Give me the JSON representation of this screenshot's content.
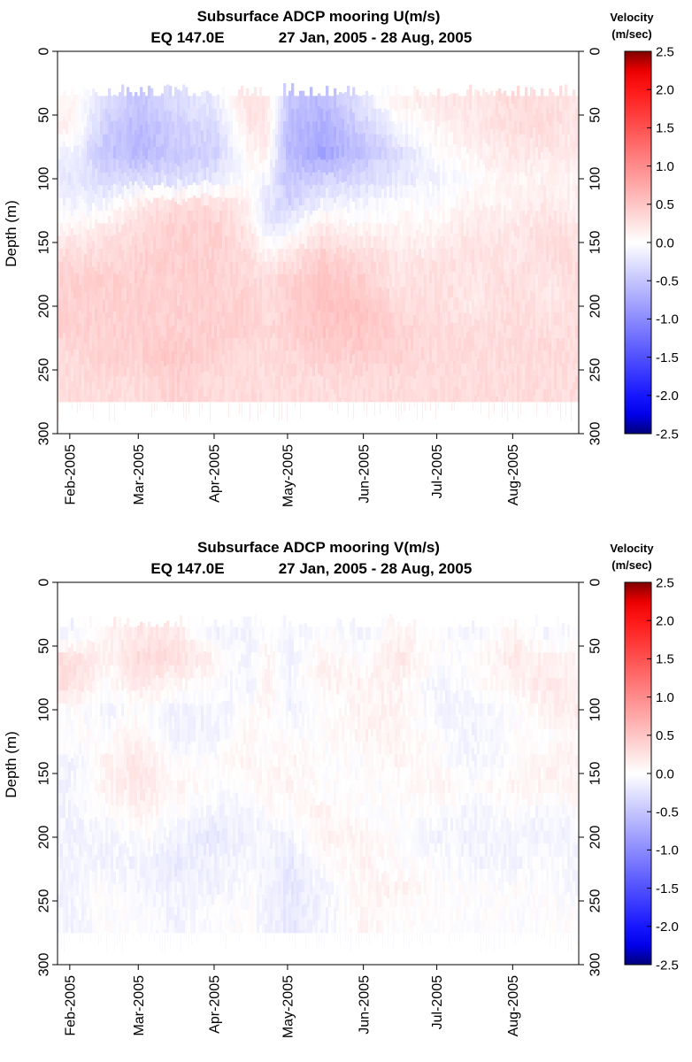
{
  "chart_data": [
    {
      "type": "heatmap",
      "title": "Subsurface ADCP mooring U(m/s)",
      "subtitle_location": "EQ 147.0E",
      "subtitle_dates": "27 Jan, 2005 - 28 Aug, 2005",
      "variable": "U",
      "ylabel": "Depth (m)",
      "ylim": [
        300,
        0
      ],
      "yticks": [
        "0",
        "50",
        "100",
        "150",
        "200",
        "250",
        "300"
      ],
      "xlim": [
        "2005-01-27",
        "2005-08-28"
      ],
      "xticks": [
        "Feb-2005",
        "Mar-2005",
        "Apr-2005",
        "May-2005",
        "Jun-2005",
        "Jul-2005",
        "Aug-2005"
      ],
      "colorbar": {
        "title_line1": "Velocity",
        "title_line2": "(m/sec)",
        "range": [
          -2.5,
          2.5
        ],
        "ticks": [
          "2.5",
          "2.0",
          "1.5",
          "1.0",
          "0.5",
          "0.0",
          "-0.5",
          "-1.0",
          "-1.5",
          "-2.0",
          "-2.5"
        ],
        "color_low": "#00007a",
        "color_mid": "#ffffff",
        "color_high": "#800000"
      },
      "data_depth_range": [
        35,
        275
      ],
      "depths": [
        40,
        60,
        80,
        100,
        120,
        140,
        160,
        180,
        200,
        220,
        240,
        260
      ],
      "dates": [
        "2005-02-01",
        "2005-02-15",
        "2005-03-01",
        "2005-03-15",
        "2005-04-01",
        "2005-04-15",
        "2005-04-22",
        "2005-05-01",
        "2005-05-15",
        "2005-06-01",
        "2005-06-15",
        "2005-07-01",
        "2005-07-15",
        "2005-08-01",
        "2005-08-15",
        "2005-08-28"
      ],
      "values": [
        [
          0.1,
          -0.3,
          -0.5,
          -0.3,
          -0.2,
          0.3,
          0.2,
          -0.5,
          -0.6,
          -0.2,
          0.1,
          0.2,
          0.2,
          0.3,
          0.3,
          0.2
        ],
        [
          0.1,
          -0.4,
          -0.6,
          -0.4,
          -0.3,
          0.2,
          0.2,
          -0.6,
          -0.7,
          -0.4,
          -0.1,
          0.1,
          0.2,
          0.3,
          0.3,
          0.2
        ],
        [
          -0.1,
          -0.5,
          -0.6,
          -0.5,
          -0.4,
          0.1,
          0.1,
          -0.6,
          -0.8,
          -0.5,
          -0.3,
          0.0,
          0.1,
          0.2,
          0.2,
          0.2
        ],
        [
          -0.2,
          -0.3,
          -0.3,
          -0.3,
          -0.2,
          0.0,
          -0.1,
          -0.5,
          -0.4,
          -0.3,
          -0.2,
          -0.1,
          0.0,
          0.1,
          0.1,
          0.1
        ],
        [
          -0.1,
          -0.1,
          0.2,
          0.3,
          0.3,
          0.1,
          -0.2,
          -0.4,
          -0.1,
          -0.1,
          0.0,
          0.0,
          0.1,
          0.1,
          0.2,
          0.1
        ],
        [
          0.1,
          0.2,
          0.3,
          0.4,
          0.4,
          0.2,
          -0.2,
          -0.1,
          0.2,
          0.1,
          0.1,
          0.1,
          0.2,
          0.2,
          0.3,
          0.2
        ],
        [
          0.3,
          0.3,
          0.4,
          0.4,
          0.4,
          0.3,
          0.1,
          0.2,
          0.4,
          0.3,
          0.2,
          0.2,
          0.3,
          0.2,
          0.3,
          0.3
        ],
        [
          0.4,
          0.4,
          0.4,
          0.4,
          0.4,
          0.3,
          0.3,
          0.4,
          0.5,
          0.4,
          0.2,
          0.3,
          0.2,
          0.3,
          0.2,
          0.3
        ],
        [
          0.4,
          0.4,
          0.4,
          0.4,
          0.4,
          0.4,
          0.3,
          0.4,
          0.5,
          0.5,
          0.3,
          0.3,
          0.2,
          0.3,
          0.2,
          0.3
        ],
        [
          0.4,
          0.4,
          0.4,
          0.4,
          0.4,
          0.4,
          0.3,
          0.4,
          0.5,
          0.5,
          0.4,
          0.3,
          0.3,
          0.3,
          0.3,
          0.3
        ],
        [
          0.3,
          0.4,
          0.4,
          0.5,
          0.4,
          0.3,
          0.3,
          0.3,
          0.4,
          0.4,
          0.4,
          0.3,
          0.3,
          0.3,
          0.3,
          0.3
        ],
        [
          0.3,
          0.3,
          0.3,
          0.4,
          0.3,
          0.3,
          0.3,
          0.3,
          0.3,
          0.3,
          0.3,
          0.3,
          0.3,
          0.3,
          0.3,
          0.3
        ]
      ]
    },
    {
      "type": "heatmap",
      "title": "Subsurface ADCP mooring V(m/s)",
      "subtitle_location": "EQ 147.0E",
      "subtitle_dates": "27 Jan, 2005 - 28 Aug, 2005",
      "variable": "V",
      "ylabel": "Depth (m)",
      "ylim": [
        300,
        0
      ],
      "yticks": [
        "0",
        "50",
        "100",
        "150",
        "200",
        "250",
        "300"
      ],
      "xlim": [
        "2005-01-27",
        "2005-08-28"
      ],
      "xticks": [
        "Feb-2005",
        "Mar-2005",
        "Apr-2005",
        "May-2005",
        "Jun-2005",
        "Jul-2005",
        "Aug-2005"
      ],
      "colorbar": {
        "title_line1": "Velocity",
        "title_line2": "(m/sec)",
        "range": [
          -2.5,
          2.5
        ],
        "ticks": [
          "2.5",
          "2.0",
          "1.5",
          "1.0",
          "0.5",
          "0.0",
          "-0.5",
          "-1.0",
          "-1.5",
          "-2.0",
          "-2.5"
        ],
        "color_low": "#00007a",
        "color_mid": "#ffffff",
        "color_high": "#800000"
      },
      "data_depth_range": [
        35,
        275
      ],
      "depths": [
        40,
        60,
        80,
        100,
        120,
        140,
        160,
        180,
        200,
        220,
        240,
        260
      ],
      "dates": [
        "2005-02-01",
        "2005-02-15",
        "2005-03-01",
        "2005-03-15",
        "2005-04-01",
        "2005-04-15",
        "2005-04-22",
        "2005-05-01",
        "2005-05-15",
        "2005-06-01",
        "2005-06-15",
        "2005-07-01",
        "2005-07-15",
        "2005-08-01",
        "2005-08-15",
        "2005-08-28"
      ],
      "values": [
        [
          -0.1,
          0.1,
          0.2,
          0.2,
          -0.1,
          -0.1,
          0.0,
          -0.1,
          0.0,
          -0.1,
          0.1,
          0.0,
          -0.1,
          0.1,
          -0.1,
          0.0
        ],
        [
          0.3,
          0.1,
          0.3,
          0.3,
          0.1,
          -0.1,
          0.1,
          -0.1,
          0.1,
          0.0,
          0.2,
          0.0,
          0.0,
          0.2,
          0.1,
          0.1
        ],
        [
          0.3,
          0.0,
          0.2,
          0.1,
          0.0,
          -0.1,
          0.1,
          -0.1,
          0.1,
          0.1,
          0.1,
          -0.1,
          0.0,
          0.1,
          0.2,
          0.1
        ],
        [
          0.0,
          -0.1,
          0.0,
          -0.1,
          -0.1,
          0.0,
          0.1,
          -0.1,
          0.0,
          0.1,
          0.1,
          -0.1,
          -0.1,
          0.0,
          0.1,
          0.2
        ],
        [
          0.0,
          0.0,
          0.1,
          -0.1,
          -0.1,
          0.1,
          0.0,
          0.0,
          0.0,
          0.1,
          0.1,
          0.0,
          -0.1,
          0.0,
          0.0,
          0.1
        ],
        [
          -0.1,
          0.1,
          0.2,
          0.0,
          0.0,
          0.1,
          0.0,
          0.1,
          0.0,
          0.0,
          0.1,
          0.0,
          -0.1,
          0.0,
          0.1,
          0.1
        ],
        [
          -0.1,
          0.1,
          0.2,
          0.1,
          0.0,
          0.0,
          0.1,
          0.1,
          0.0,
          0.0,
          0.0,
          0.1,
          0.0,
          0.1,
          0.1,
          0.1
        ],
        [
          -0.1,
          0.0,
          0.1,
          0.0,
          -0.1,
          -0.1,
          0.0,
          0.0,
          0.1,
          0.0,
          0.0,
          0.0,
          -0.1,
          0.0,
          -0.1,
          0.0
        ],
        [
          -0.1,
          -0.1,
          0.0,
          -0.1,
          -0.2,
          -0.1,
          -0.1,
          -0.1,
          0.1,
          0.1,
          0.0,
          -0.1,
          -0.1,
          -0.1,
          -0.1,
          -0.1
        ],
        [
          -0.1,
          -0.1,
          -0.1,
          -0.2,
          -0.1,
          -0.1,
          -0.1,
          -0.2,
          0.0,
          0.1,
          0.0,
          0.0,
          -0.1,
          -0.1,
          0.0,
          -0.1
        ],
        [
          -0.1,
          0.0,
          -0.1,
          -0.1,
          -0.1,
          0.0,
          -0.1,
          -0.2,
          -0.1,
          0.1,
          0.1,
          0.0,
          0.0,
          0.0,
          0.0,
          -0.1
        ],
        [
          -0.1,
          0.0,
          0.0,
          -0.1,
          0.0,
          0.0,
          -0.1,
          -0.2,
          -0.1,
          0.1,
          0.0,
          0.0,
          0.0,
          0.0,
          0.0,
          0.0
        ]
      ]
    }
  ]
}
